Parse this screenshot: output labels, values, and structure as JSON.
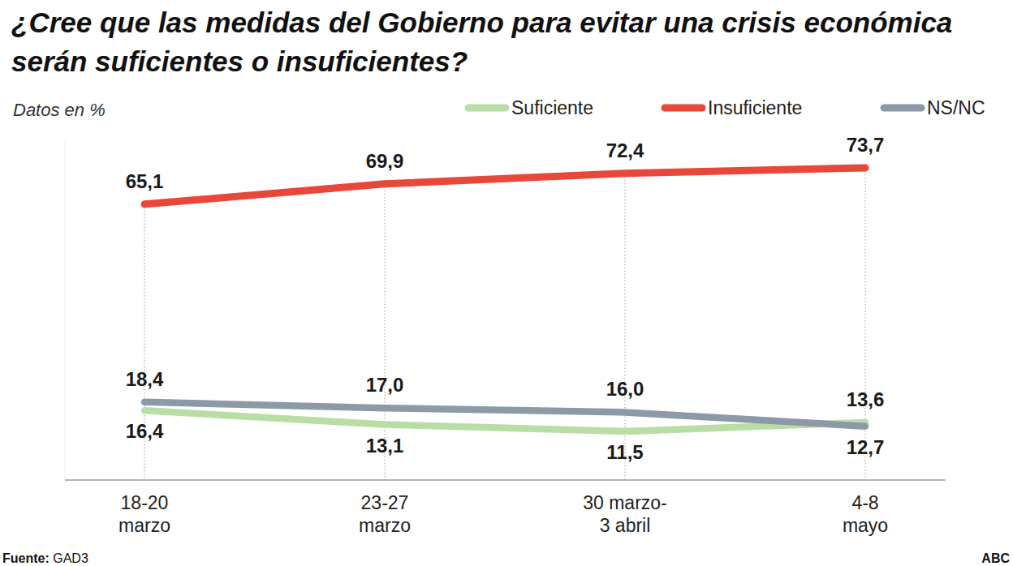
{
  "chart_data": {
    "type": "line",
    "title": "¿Cree que las medidas del Gobierno para evitar una crisis económica serán suficientes o insuficientes?",
    "subtitle": "Datos en %",
    "source_label": "Fuente:",
    "source": "GAD3",
    "credit": "ABC",
    "categories": [
      "18-20\nmarzo",
      "23-27\nmarzo",
      "30 marzo-\n3 abril",
      "4-8\nmayo"
    ],
    "series": [
      {
        "name": "Suficiente",
        "color": "#b9dea5",
        "values": [
          16.4,
          13.1,
          11.5,
          13.6
        ],
        "value_labels": [
          "16,4",
          "13,1",
          "11,5",
          "13,6"
        ]
      },
      {
        "name": "Insuficiente",
        "color": "#e8473a",
        "values": [
          65.1,
          69.9,
          72.4,
          73.7
        ],
        "value_labels": [
          "65,1",
          "69,9",
          "72,4",
          "73,7"
        ]
      },
      {
        "name": "NS/NC",
        "color": "#8c9aa8",
        "values": [
          18.4,
          17.0,
          16.0,
          12.7
        ],
        "value_labels": [
          "18,4",
          "17,0",
          "16,0",
          "12,7"
        ]
      }
    ],
    "ylim": [
      0,
      80
    ],
    "yticks": [
      0
    ],
    "tick_labels": "x",
    "grid": "x",
    "data_labels": true,
    "legend": "top-right",
    "line_style": "solid",
    "marker": "none"
  }
}
